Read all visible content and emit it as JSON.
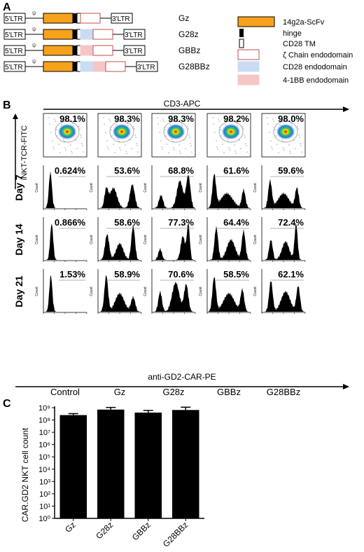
{
  "panels": {
    "a": "A",
    "b": "B",
    "c": "C"
  },
  "constructs": {
    "ltr5": "5'LTR",
    "ltr3": "3'LTR",
    "psi": "ψ",
    "names": [
      "Gz",
      "G28z",
      "GBBz",
      "G28BBz"
    ]
  },
  "legend": {
    "items": [
      {
        "label": "14g2a-ScFv",
        "color": "#f7a21b"
      },
      {
        "label": "hinge",
        "color": "#000000"
      },
      {
        "label": "CD28 TM",
        "color": "#ffffff"
      },
      {
        "label": "ζ Chain endodomain",
        "color": "#ffffff"
      },
      {
        "label": "CD28 endodomain",
        "color": "#c9dcf4"
      },
      {
        "label": "4-1BB endodomain",
        "color": "#f6c6c6"
      }
    ]
  },
  "flow": {
    "top_axis": "CD3-APC",
    "y_axis": "iNKT-TCR-FITC",
    "bottom_axis": "anti-GD2-CAR-PE",
    "columns": [
      "Control",
      "Gz",
      "G28z",
      "GBBz",
      "G28BBz"
    ],
    "days": [
      "Day 7",
      "Day 14",
      "Day 21"
    ],
    "count_label": "Count",
    "scatter_pct": [
      "98.1%",
      "98.3%",
      "98.3%",
      "98.2%",
      "98.0%"
    ],
    "hist_pct": [
      [
        "0.624%",
        "53.6%",
        "68.8%",
        "61.6%",
        "59.6%"
      ],
      [
        "0.866%",
        "58.6%",
        "77.3%",
        "64.4%",
        "72.4%"
      ],
      [
        "1.53%",
        "58.9%",
        "70.6%",
        "58.5%",
        "62.1%"
      ]
    ]
  },
  "chart_data": {
    "type": "bar",
    "categories": [
      "Gz",
      "G28z",
      "GBBz",
      "G28BBz"
    ],
    "values": [
      250000000,
      700000000,
      400000000,
      650000000
    ],
    "errors": [
      80000000,
      350000000,
      200000000,
      450000000
    ],
    "ylabel": "CAR.GD2 NKT cell count",
    "yscale": "log",
    "ylim": [
      1,
      1000000000
    ],
    "yticks": [
      "10⁰",
      "10¹",
      "10²",
      "10³",
      "10⁴",
      "10⁵",
      "10⁶",
      "10⁷",
      "10⁸",
      "10⁹"
    ]
  }
}
